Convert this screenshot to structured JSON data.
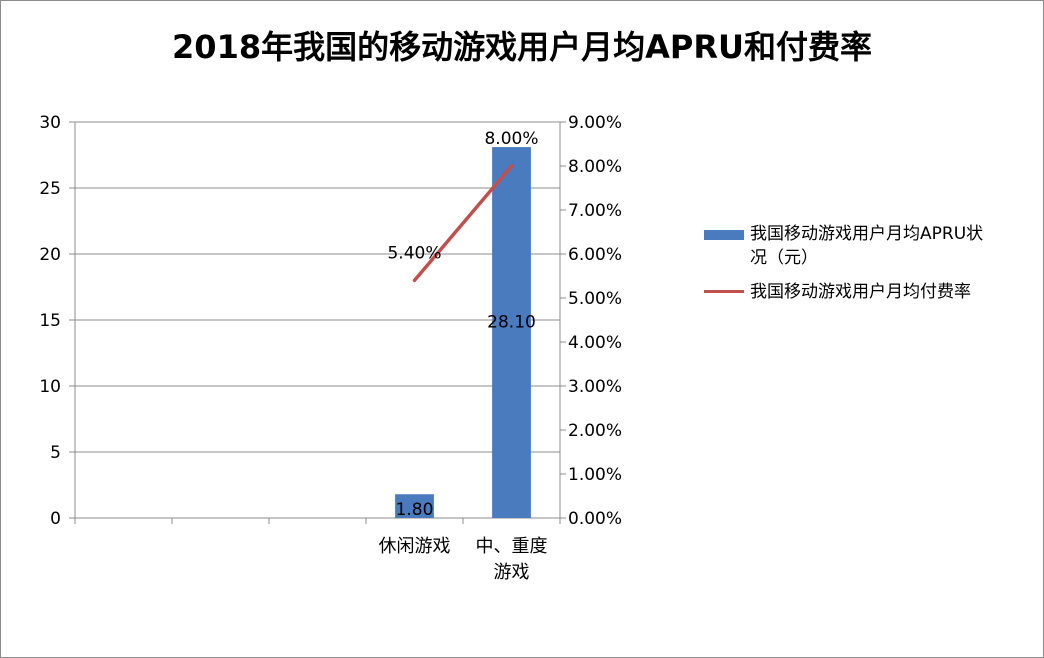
{
  "chart_data": {
    "type": "bar",
    "title": "2018年我国的移动游戏用户月均APRU和付费率",
    "categories": [
      "",
      "",
      "",
      "休闲游戏",
      "中、重度游戏"
    ],
    "category_lines": [
      [],
      [],
      [],
      [
        "休闲游戏"
      ],
      [
        "中、重度",
        "游戏"
      ]
    ],
    "series": [
      {
        "name": "我国移动游戏用户月均APRU状况（元）",
        "type": "bar",
        "axis": "left",
        "color": "#4a7bbf",
        "values": [
          null,
          null,
          null,
          1.8,
          28.1
        ],
        "labels": [
          "",
          "",
          "",
          "1.80",
          "28.10"
        ]
      },
      {
        "name": "我国移动游戏用户月均付费率",
        "type": "line",
        "axis": "right",
        "color": "#c0504d",
        "values": [
          null,
          null,
          null,
          0.054,
          0.08
        ],
        "labels": [
          "",
          "",
          "",
          "5.40%",
          "8.00%"
        ]
      }
    ],
    "y_left": {
      "min": 0,
      "max": 30,
      "ticks": [
        "0",
        "5",
        "10",
        "15",
        "20",
        "25",
        "30"
      ]
    },
    "y_right": {
      "min": 0,
      "max": 0.09,
      "ticks": [
        "0.00%",
        "1.00%",
        "2.00%",
        "3.00%",
        "4.00%",
        "5.00%",
        "6.00%",
        "7.00%",
        "8.00%",
        "9.00%"
      ]
    },
    "grid": true,
    "legend_position": "right"
  },
  "legend": {
    "bar_line1": "我国移动游戏用户月均APRU状",
    "bar_line2": "况（元）",
    "line_label": "我国移动游戏用户月均付费率"
  }
}
